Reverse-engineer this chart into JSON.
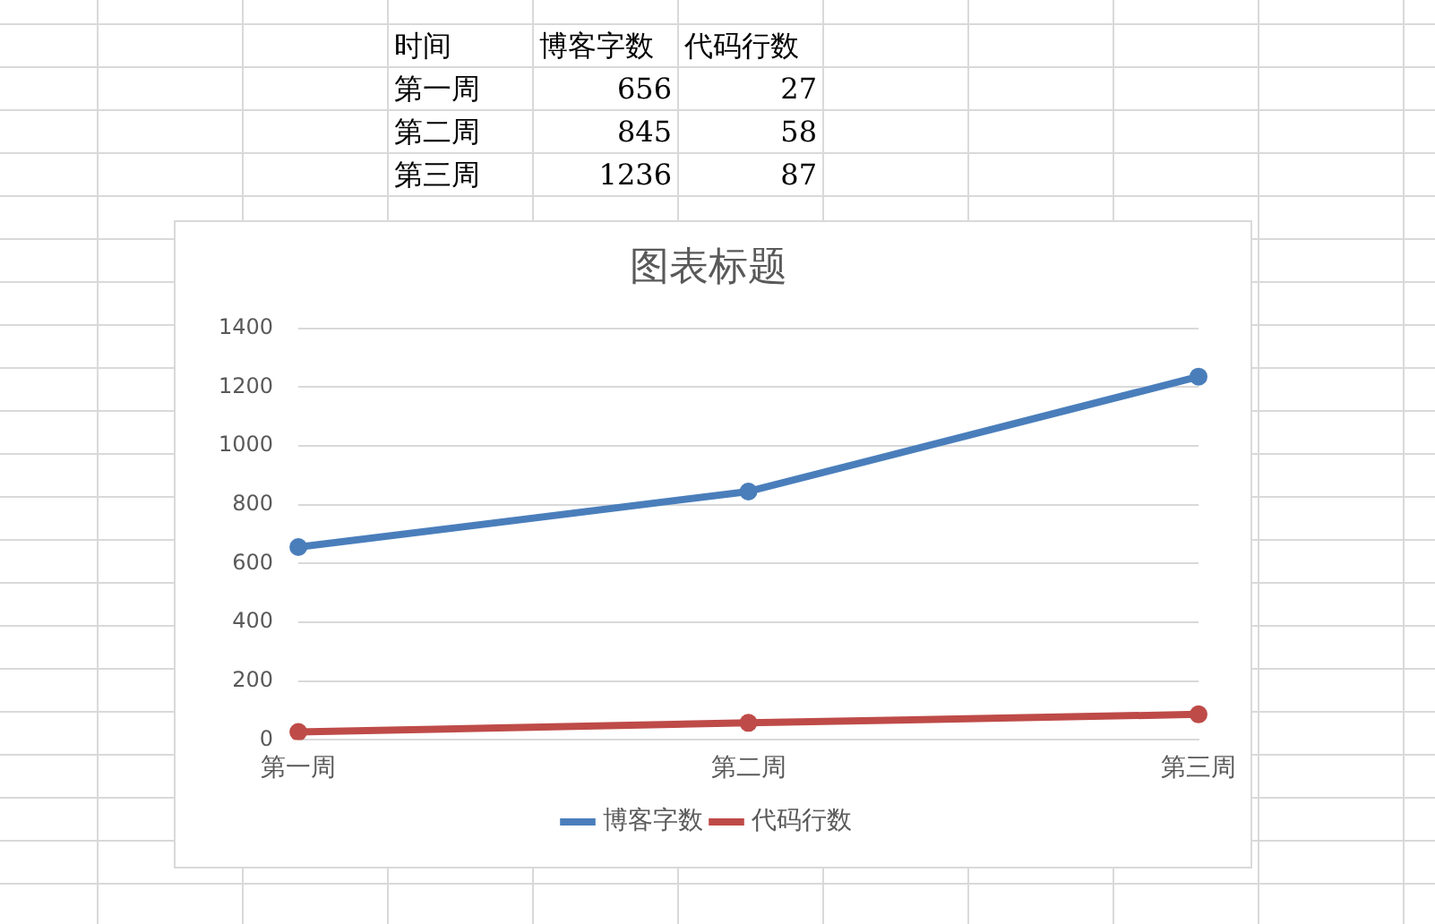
{
  "chart_data": {
    "type": "line",
    "title": "图表标题",
    "categories": [
      "第一周",
      "第二周",
      "第三周"
    ],
    "series": [
      {
        "name": "博客字数",
        "color": "#4a7ebb",
        "values": [
          656,
          845,
          1236
        ]
      },
      {
        "name": "代码行数",
        "color": "#be4b48",
        "values": [
          27,
          58,
          87
        ]
      }
    ],
    "ylim": [
      0,
      1400
    ],
    "yticks": [
      0,
      200,
      400,
      600,
      800,
      1000,
      1200,
      1400
    ],
    "grid": "y",
    "legend": "bottom",
    "marker": "circle",
    "line_style": "solid",
    "annotations": [
      "时间",
      "博客字数",
      "代码行数",
      "第一周",
      "656",
      "27",
      "第二周",
      "845",
      "58",
      "第三周",
      "1236",
      "87"
    ]
  }
}
